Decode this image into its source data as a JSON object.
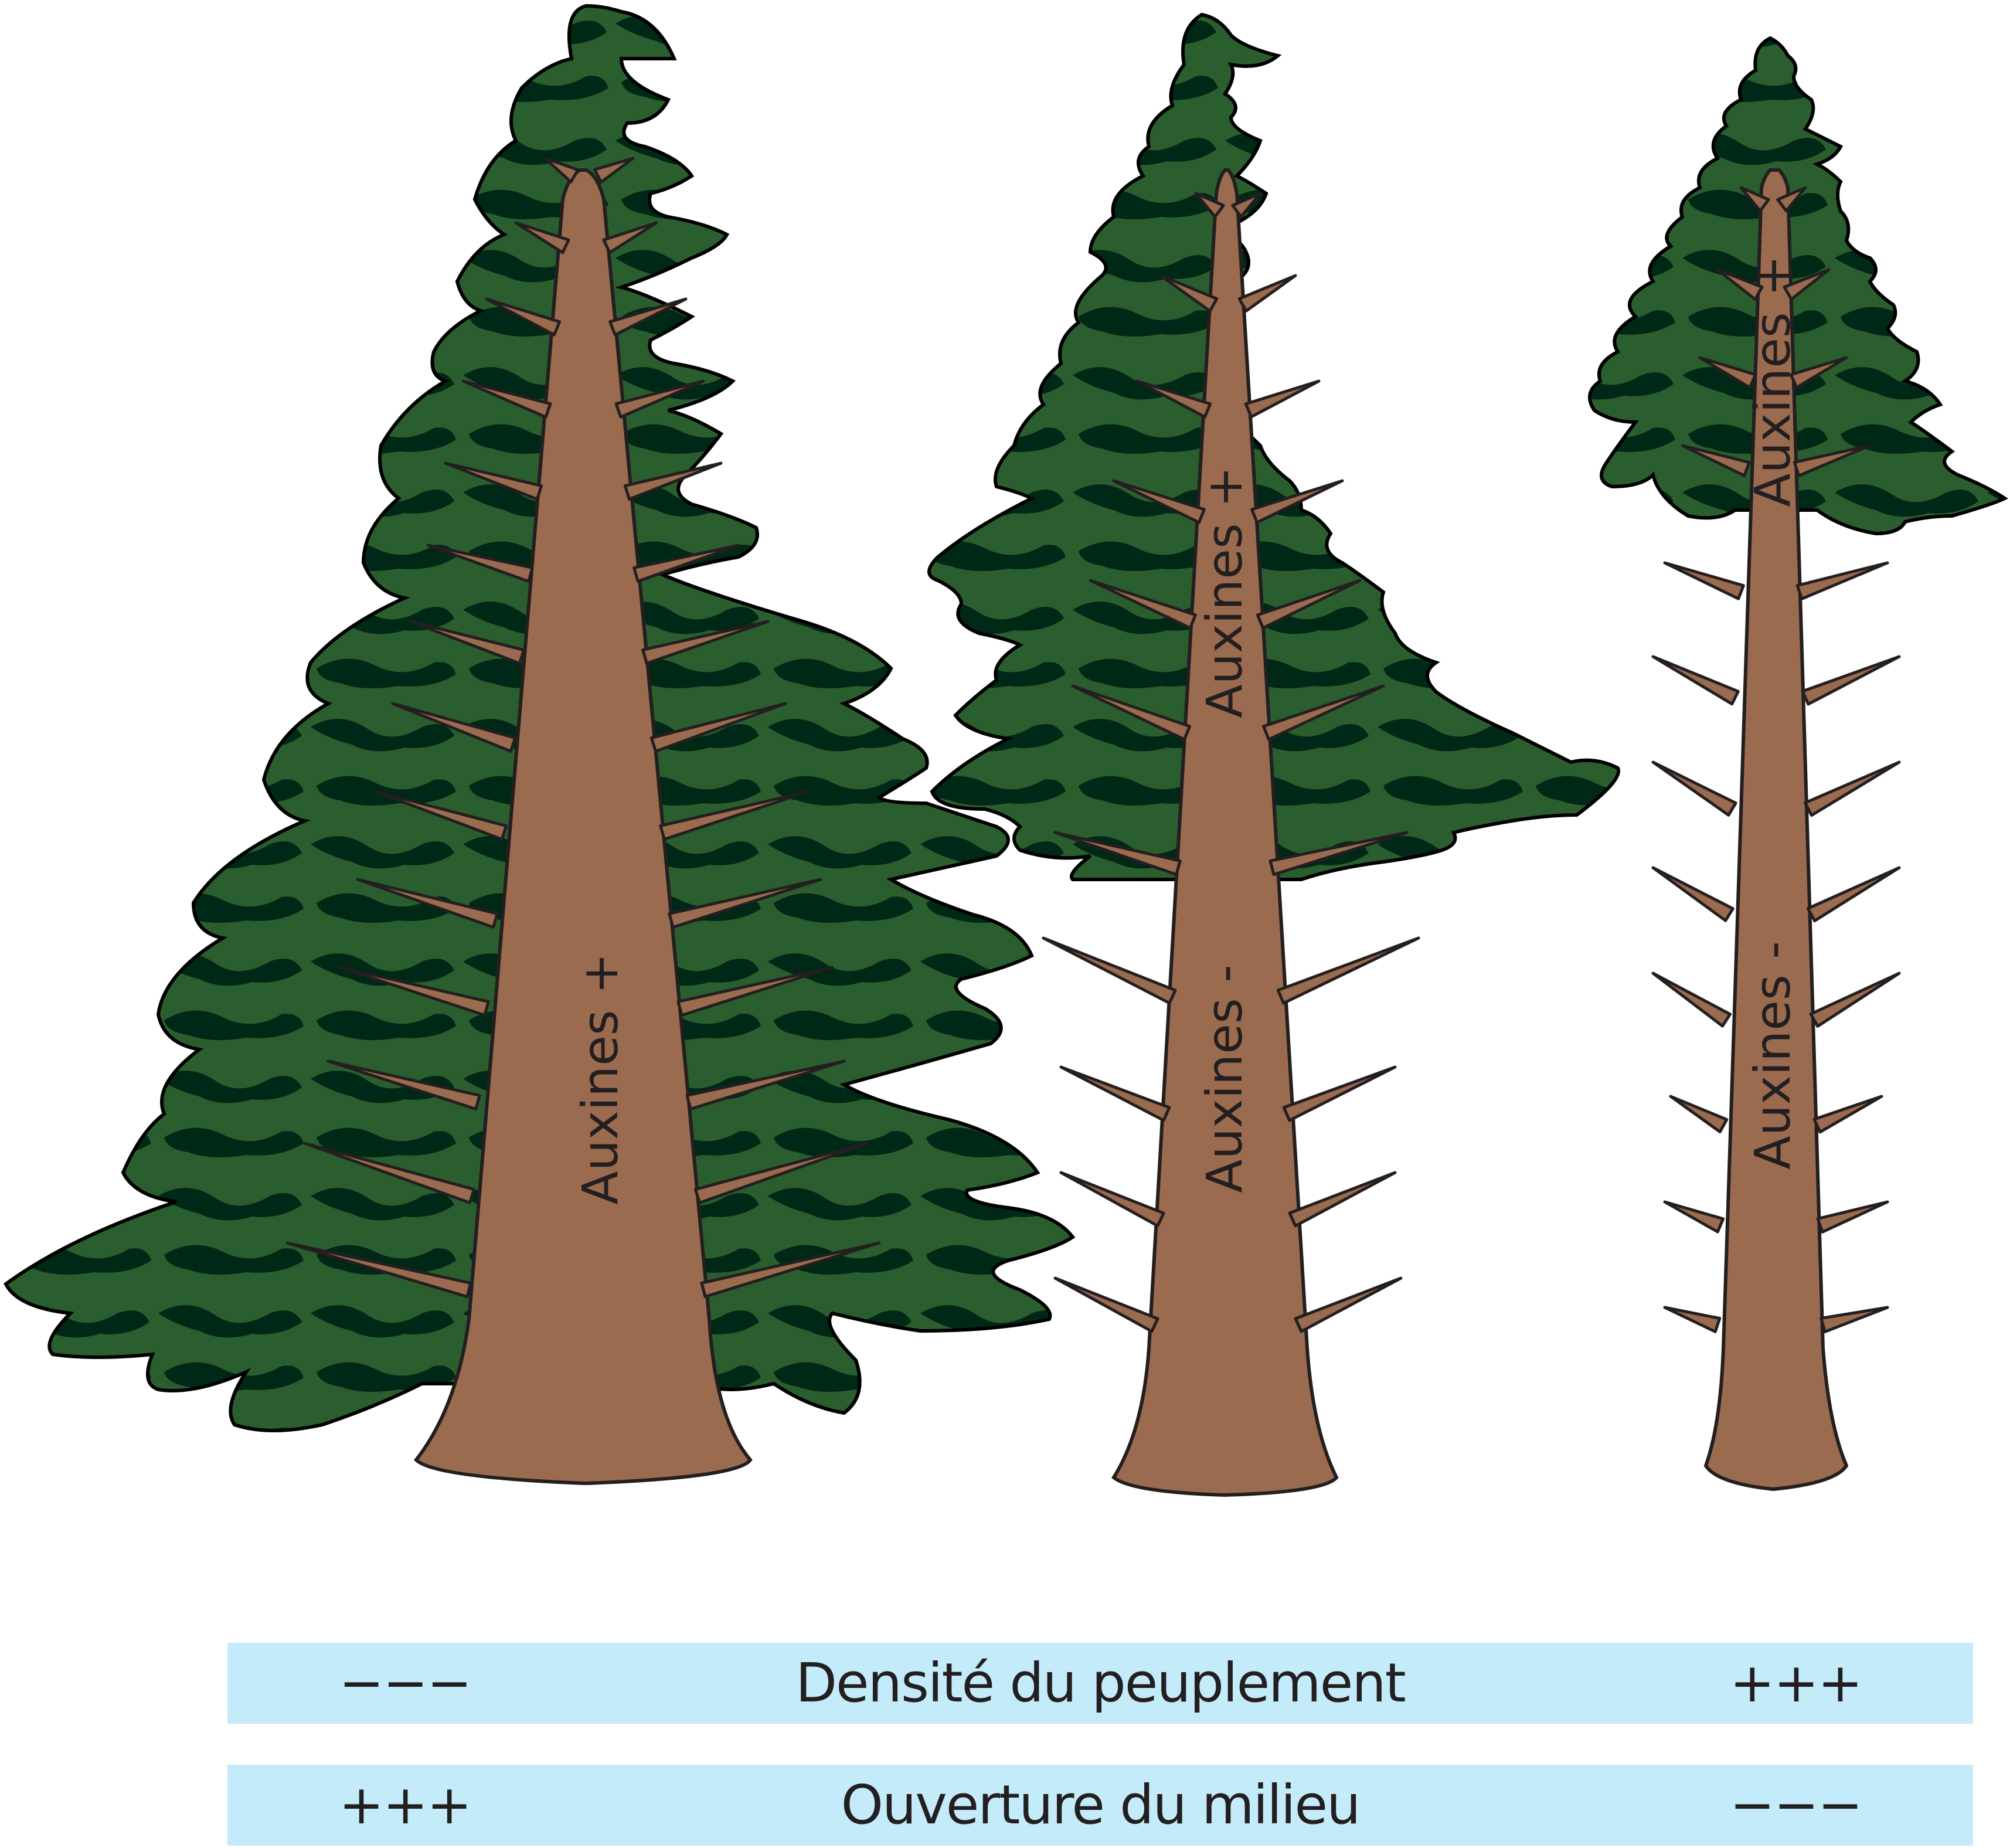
{
  "trees": [
    {
      "id": "tree-1",
      "labels": [
        "Auxines +"
      ]
    },
    {
      "id": "tree-2",
      "labels": [
        "Auxines +",
        "Auxines -"
      ]
    },
    {
      "id": "tree-3",
      "labels": [
        "Auxines +",
        "Auxines -"
      ]
    }
  ],
  "scale_rows": [
    {
      "left": "−−−",
      "title": "Densité du peuplement",
      "right": "+++"
    },
    {
      "left": "+++",
      "title": "Ouverture du milieu",
      "right": "−−−"
    }
  ],
  "colors": {
    "foliage": "#2b5e2e",
    "foliage_dark": "#002816",
    "trunk": "#9a6b4e",
    "outline": "#231f20",
    "bar": "#c4ebfa"
  }
}
